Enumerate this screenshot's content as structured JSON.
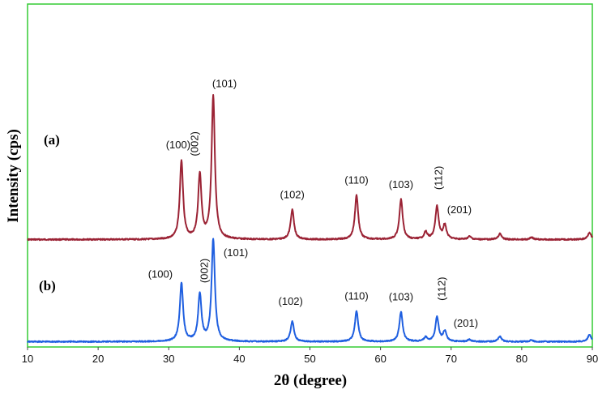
{
  "chart_data": {
    "type": "line",
    "xlabel": "2θ (degree)",
    "ylabel": "Intensity (cps)",
    "xlim": [
      10,
      90
    ],
    "x_ticks": [
      "10",
      "20",
      "30",
      "40",
      "50",
      "60",
      "70",
      "80",
      "90"
    ],
    "grid": false,
    "colors": {
      "a": "#9b2335",
      "b": "#1f5fe0",
      "frame": "#33cc33"
    },
    "panel_labels": [
      "(a)",
      "(b)"
    ],
    "series": [
      {
        "label": "(a)",
        "baseline_cps": 0.02,
        "peaks": [
          {
            "label": "(100)",
            "x": 31.8,
            "y": 0.55
          },
          {
            "label": "(002)",
            "x": 34.4,
            "y": 0.45
          },
          {
            "label": "(101)",
            "x": 36.3,
            "y": 1.0
          },
          {
            "label": "(102)",
            "x": 47.5,
            "y": 0.21
          },
          {
            "label": "(110)",
            "x": 56.6,
            "y": 0.31
          },
          {
            "label": "(103)",
            "x": 62.9,
            "y": 0.28
          },
          {
            "label": "(112)",
            "x": 68.0,
            "y": 0.23
          },
          {
            "label": "(201)",
            "x": 69.1,
            "y": 0.1
          },
          {
            "label": "",
            "x": 66.4,
            "y": 0.05
          },
          {
            "label": "",
            "x": 72.6,
            "y": 0.02
          },
          {
            "label": "",
            "x": 76.9,
            "y": 0.04
          },
          {
            "label": "",
            "x": 81.4,
            "y": 0.015
          },
          {
            "label": "",
            "x": 89.6,
            "y": 0.05
          }
        ]
      },
      {
        "label": "(b)",
        "baseline_cps": 0.02,
        "peaks": [
          {
            "label": "(100)",
            "x": 31.8,
            "y": 0.57
          },
          {
            "label": "(002)",
            "x": 34.4,
            "y": 0.46
          },
          {
            "label": "(101)",
            "x": 36.3,
            "y": 1.0
          },
          {
            "label": "(102)",
            "x": 47.5,
            "y": 0.2
          },
          {
            "label": "(110)",
            "x": 56.6,
            "y": 0.3
          },
          {
            "label": "(103)",
            "x": 62.9,
            "y": 0.29
          },
          {
            "label": "(112)",
            "x": 68.0,
            "y": 0.24
          },
          {
            "label": "(201)",
            "x": 69.1,
            "y": 0.1
          },
          {
            "label": "",
            "x": 66.4,
            "y": 0.04
          },
          {
            "label": "",
            "x": 72.6,
            "y": 0.02
          },
          {
            "label": "",
            "x": 76.9,
            "y": 0.05
          },
          {
            "label": "",
            "x": 81.4,
            "y": 0.015
          },
          {
            "label": "",
            "x": 89.6,
            "y": 0.07
          }
        ]
      }
    ]
  }
}
